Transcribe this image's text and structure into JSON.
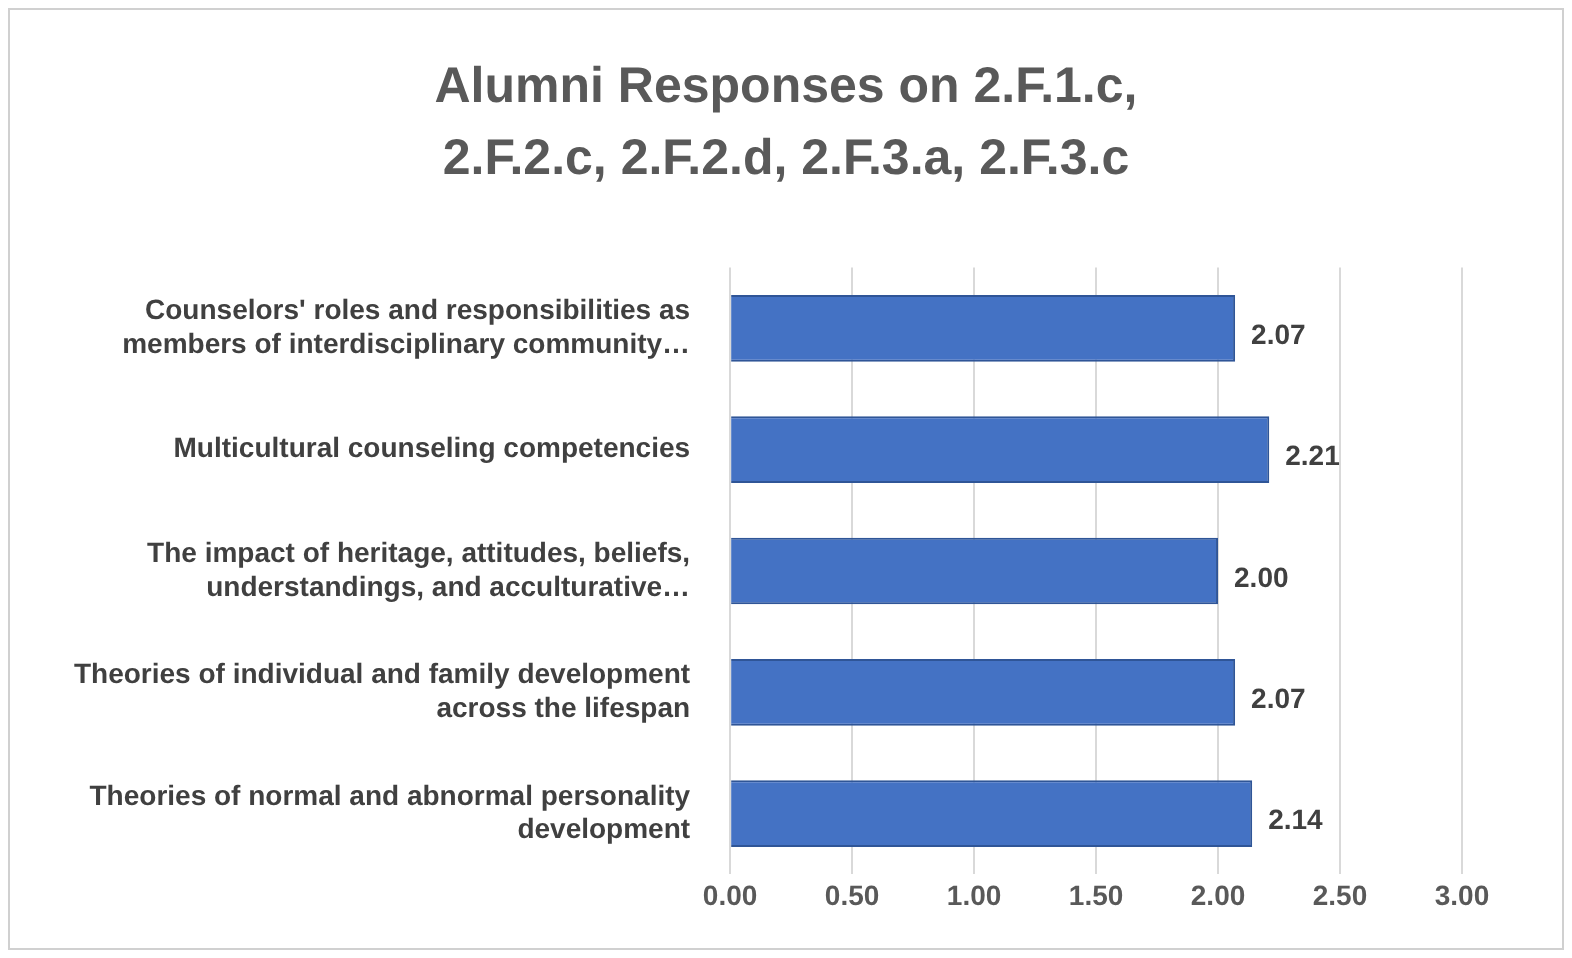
{
  "chart_data": {
    "type": "bar",
    "orientation": "horizontal",
    "title": "Alumni Responses on 2.F.1.c, 2.F.2.c, 2.F.2.d, 2.F.3.a, 2.F.3.c",
    "categories": [
      "Counselors' roles and responsibilities as members of interdisciplinary community…",
      "Multicultural counseling competencies",
      "The impact of heritage, attitudes, beliefs, understandings, and acculturative…",
      "Theories of individual and family development across the lifespan",
      "Theories of normal and abnormal personality development"
    ],
    "values": [
      2.07,
      2.21,
      2.0,
      2.07,
      2.14
    ],
    "value_labels": [
      "2.07",
      "2.21",
      "2.00",
      "2.07",
      "2.14"
    ],
    "color": "#4472c4",
    "xlim": [
      0,
      3
    ],
    "xticks": [
      {
        "value": 0,
        "label": "0.00"
      },
      {
        "value": 0.5,
        "label": "0.50"
      },
      {
        "value": 1,
        "label": "1.00"
      },
      {
        "value": 1.5,
        "label": "1.50"
      },
      {
        "value": 2,
        "label": "2.00"
      },
      {
        "value": 2.5,
        "label": "2.50"
      },
      {
        "value": 3,
        "label": "3.00"
      }
    ],
    "grid": "x"
  }
}
